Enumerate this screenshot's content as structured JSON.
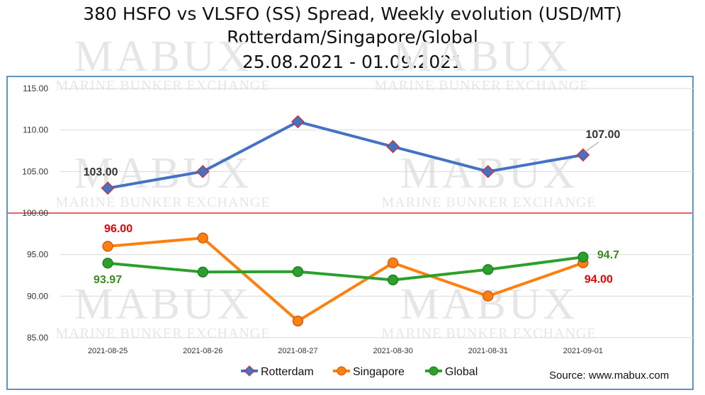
{
  "title_lines": [
    "380 HSFO vs VLSFO (SS) Spread, Weekly evolution (USD/MT)",
    "Rotterdam/Singapore/Global",
    "25.08.2021 - 01.09.2021"
  ],
  "watermark": {
    "brand": "MABUX",
    "tagline": "Marine Bunker Exchange"
  },
  "source": "Source: www.mabux.com",
  "colors": {
    "rotterdam": "#4472C4",
    "singapore": "#FF7F0E",
    "global": "#2CA02C",
    "reference_line": "#E06666",
    "frame": "#2F6FA8"
  },
  "chart_data": {
    "type": "line",
    "title": "380 HSFO vs VLSFO (SS) Spread, Weekly evolution (USD/MT)",
    "categories": [
      "2021-08-25",
      "2021-08-26",
      "2021-08-27",
      "2021-08-30",
      "2021-08-31",
      "2021-09-01"
    ],
    "ylim": [
      85,
      115
    ],
    "yticks": [
      "115.00",
      "110.00",
      "105.00",
      "100.00",
      "95.00",
      "90.00",
      "85.00"
    ],
    "reference_line": 100,
    "grid": true,
    "legend_position": "bottom",
    "series": [
      {
        "name": "Rotterdam",
        "values": [
          103,
          105,
          111,
          108,
          105,
          107
        ],
        "labels": [
          {
            "index": 0,
            "text": "103.00"
          },
          {
            "index": 5,
            "text": "107.00"
          }
        ]
      },
      {
        "name": "Singapore",
        "values": [
          96,
          97,
          87,
          94,
          90,
          94
        ],
        "labels": [
          {
            "index": 0,
            "text": "96.00"
          },
          {
            "index": 5,
            "text": "94.00"
          }
        ]
      },
      {
        "name": "Global",
        "values": [
          93.97,
          92.9,
          92.95,
          91.95,
          93.2,
          94.7
        ],
        "labels": [
          {
            "index": 0,
            "text": "93.97"
          },
          {
            "index": 5,
            "text": "94.7"
          }
        ]
      }
    ]
  }
}
